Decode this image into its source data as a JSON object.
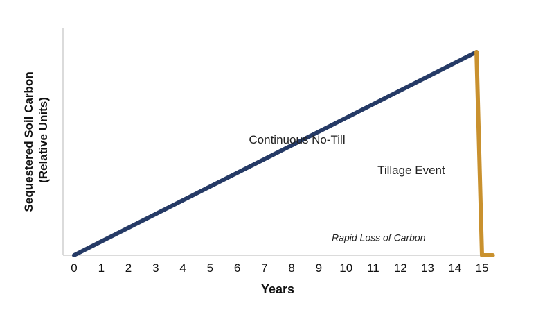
{
  "chart_data": {
    "type": "line",
    "title": "",
    "xlabel": "Years",
    "ylabel_lines": [
      "Sequestered Soil Carbon",
      "(Relative Units)"
    ],
    "x_ticks": [
      0,
      1,
      2,
      3,
      4,
      5,
      6,
      7,
      8,
      9,
      10,
      11,
      12,
      13,
      14,
      15
    ],
    "xlim": [
      0,
      15
    ],
    "ylim": [
      0,
      100
    ],
    "grid": false,
    "y_tick_labels": false,
    "series": [
      {
        "color": "#253a66",
        "x": [
          0,
          14.8
        ],
        "y": [
          0,
          100
        ]
      },
      {
        "color": "#c9912e",
        "x": [
          14.8,
          15.0,
          15.4
        ],
        "y": [
          100,
          0,
          0
        ]
      }
    ],
    "annotations": [
      {
        "text": "Continuous No-Till",
        "x": 8.2,
        "y": 55
      },
      {
        "text": "Tillage Event",
        "x": 12.4,
        "y": 40
      },
      {
        "text": "Rapid Loss of Carbon",
        "x": 11.2,
        "y": 7,
        "italic": true
      }
    ]
  }
}
